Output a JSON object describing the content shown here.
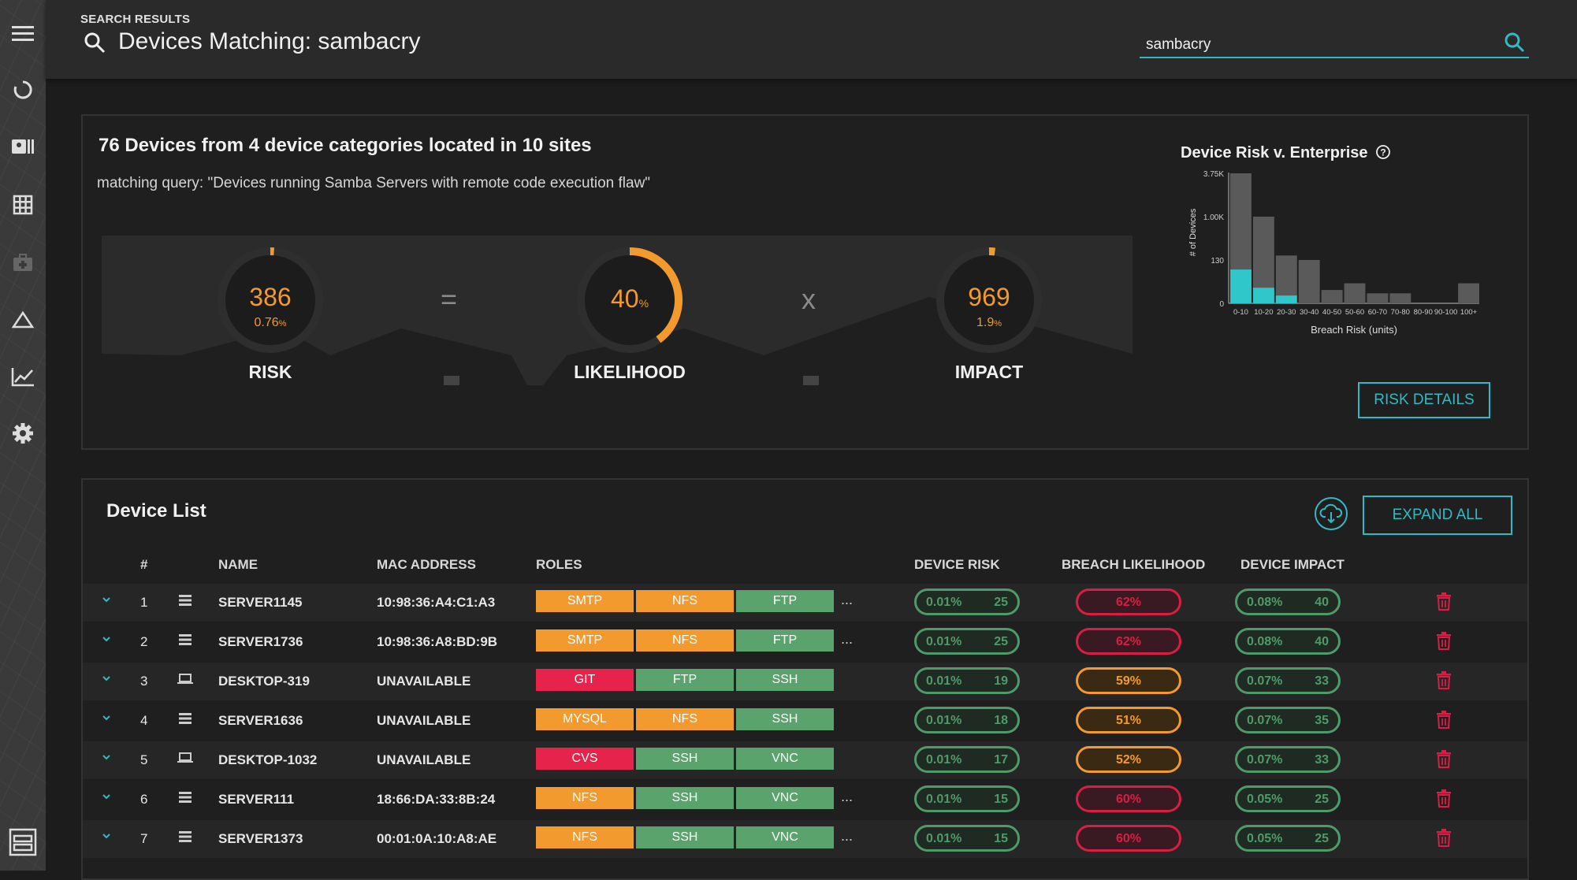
{
  "header": {
    "crumb": "SEARCH RESULTS",
    "title": "Devices Matching: sambacry"
  },
  "search": {
    "value": "sambacry",
    "placeholder": ""
  },
  "summary": {
    "title": "76 Devices from 4 device categories located in 10 sites",
    "query": "matching query: \"Devices running Samba Servers with remote code execution flaw\"",
    "risk": {
      "value": "386",
      "pct": "0.76",
      "unit": "%",
      "label": "RISK",
      "fraction": 0.0076
    },
    "likelihood": {
      "value": "40",
      "unit": "%",
      "label": "LIKELIHOOD",
      "fraction": 0.4
    },
    "impact": {
      "value": "969",
      "pct": "1.9",
      "unit": "%",
      "label": "IMPACT",
      "fraction": 0.019
    },
    "op_equals": "=",
    "op_times": "x",
    "risk_details_label": "RISK DETAILS"
  },
  "chart_data": {
    "type": "bar",
    "title": "Device Risk v. Enterprise",
    "xlabel": "Breach Risk (units)",
    "ylabel": "# of Devices",
    "categories": [
      "0-10",
      "10-20",
      "20-30",
      "30-40",
      "40-50",
      "50-60",
      "60-70",
      "70-80",
      "80-90",
      "90-100",
      "100+"
    ],
    "ytick_labels": [
      "0",
      "130",
      "1.00K",
      "3.75K"
    ],
    "series": [
      {
        "values": [
          3750,
          1000,
          220,
          130,
          40,
          60,
          30,
          30,
          0,
          0,
          60
        ]
      },
      {
        "values": [
          130,
          60,
          30,
          0,
          0,
          0,
          0,
          0,
          0,
          0,
          0
        ]
      }
    ],
    "colors": {
      "enterprise": "#5a5a5a",
      "matching": "#2fc7c9"
    }
  },
  "devlist": {
    "title": "Device List",
    "expand_label": "EXPAND ALL",
    "columns": {
      "num": "#",
      "name": "NAME",
      "mac": "MAC ADDRESS",
      "roles": "ROLES",
      "risk": "DEVICE RISK",
      "likelihood": "BREACH LIKELIHOOD",
      "impact": "DEVICE IMPACT"
    },
    "rows": [
      {
        "n": "1",
        "type": "server",
        "name": "SERVER1145",
        "mac": "10:98:36:A4:C1:A3",
        "roles": [
          "SMTP",
          "NFS",
          "FTP"
        ],
        "more": "...",
        "risk_pct": "0.01%",
        "risk_val": "25",
        "like": "62%",
        "imp_pct": "0.08%",
        "imp_val": "40"
      },
      {
        "n": "2",
        "type": "server",
        "name": "SERVER1736",
        "mac": "10:98:36:A8:BD:9B",
        "roles": [
          "SMTP",
          "NFS",
          "FTP"
        ],
        "more": "...",
        "risk_pct": "0.01%",
        "risk_val": "25",
        "like": "62%",
        "imp_pct": "0.08%",
        "imp_val": "40"
      },
      {
        "n": "3",
        "type": "desktop",
        "name": "DESKTOP-319",
        "mac": "UNAVAILABLE",
        "roles": [
          "GIT",
          "FTP",
          "SSH"
        ],
        "more": "",
        "risk_pct": "0.01%",
        "risk_val": "19",
        "like": "59%",
        "imp_pct": "0.07%",
        "imp_val": "33"
      },
      {
        "n": "4",
        "type": "server",
        "name": "SERVER1636",
        "mac": "UNAVAILABLE",
        "roles": [
          "MYSQL",
          "NFS",
          "SSH"
        ],
        "more": "",
        "risk_pct": "0.01%",
        "risk_val": "18",
        "like": "51%",
        "imp_pct": "0.07%",
        "imp_val": "35"
      },
      {
        "n": "5",
        "type": "desktop",
        "name": "DESKTOP-1032",
        "mac": "UNAVAILABLE",
        "roles": [
          "CVS",
          "SSH",
          "VNC"
        ],
        "more": "",
        "risk_pct": "0.01%",
        "risk_val": "17",
        "like": "52%",
        "imp_pct": "0.07%",
        "imp_val": "33"
      },
      {
        "n": "6",
        "type": "server",
        "name": "SERVER111",
        "mac": "18:66:DA:33:8B:24",
        "roles": [
          "NFS",
          "SSH",
          "VNC"
        ],
        "more": "...",
        "risk_pct": "0.01%",
        "risk_val": "15",
        "like": "60%",
        "imp_pct": "0.05%",
        "imp_val": "25"
      },
      {
        "n": "7",
        "type": "server",
        "name": "SERVER1373",
        "mac": "00:01:0A:10:A8:AE",
        "roles": [
          "NFS",
          "SSH",
          "VNC"
        ],
        "more": "...",
        "risk_pct": "0.01%",
        "risk_val": "15",
        "like": "60%",
        "imp_pct": "0.05%",
        "imp_val": "25"
      }
    ]
  },
  "colors": {
    "accent": "#34b8c2",
    "orange": "#f29a2e",
    "green": "#5aa36c",
    "red": "#e6234a",
    "pill_green": "#4f9a69",
    "pill_red": "#d81e44",
    "pill_orange": "#f29a2e",
    "role_colors": {
      "SMTP": "#f29a2e",
      "NFS": "#f29a2e",
      "MYSQL": "#f29a2e",
      "GIT": "#e6234a",
      "CVS": "#e6234a",
      "FTP": "#5aa36c",
      "SSH": "#5aa36c",
      "VNC": "#5aa36c"
    }
  },
  "icons": [
    "menu-icon",
    "dashboard-icon",
    "devices-icon",
    "grid-icon",
    "medical-icon",
    "alert-icon",
    "trend-icon",
    "gear-icon",
    "panel-icon",
    "search-icon",
    "download-icon",
    "chevron-down-icon",
    "server-icon",
    "laptop-icon",
    "trash-icon",
    "help-icon"
  ]
}
